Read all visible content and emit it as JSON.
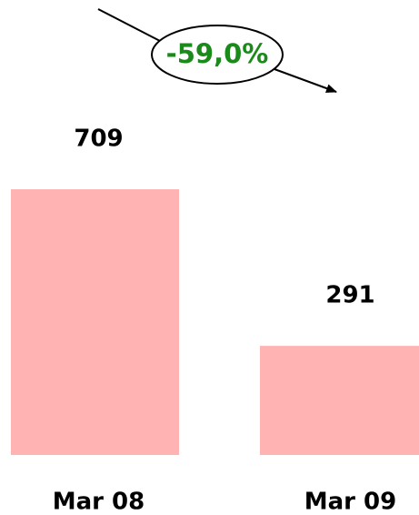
{
  "chart_data": {
    "type": "bar",
    "annotation": "-59,0%",
    "categories": [
      "Mar 08",
      "Mar 09"
    ],
    "values": [
      709,
      291
    ],
    "color": "#ffb3b3",
    "annotation_color": "#1a8a1a"
  }
}
